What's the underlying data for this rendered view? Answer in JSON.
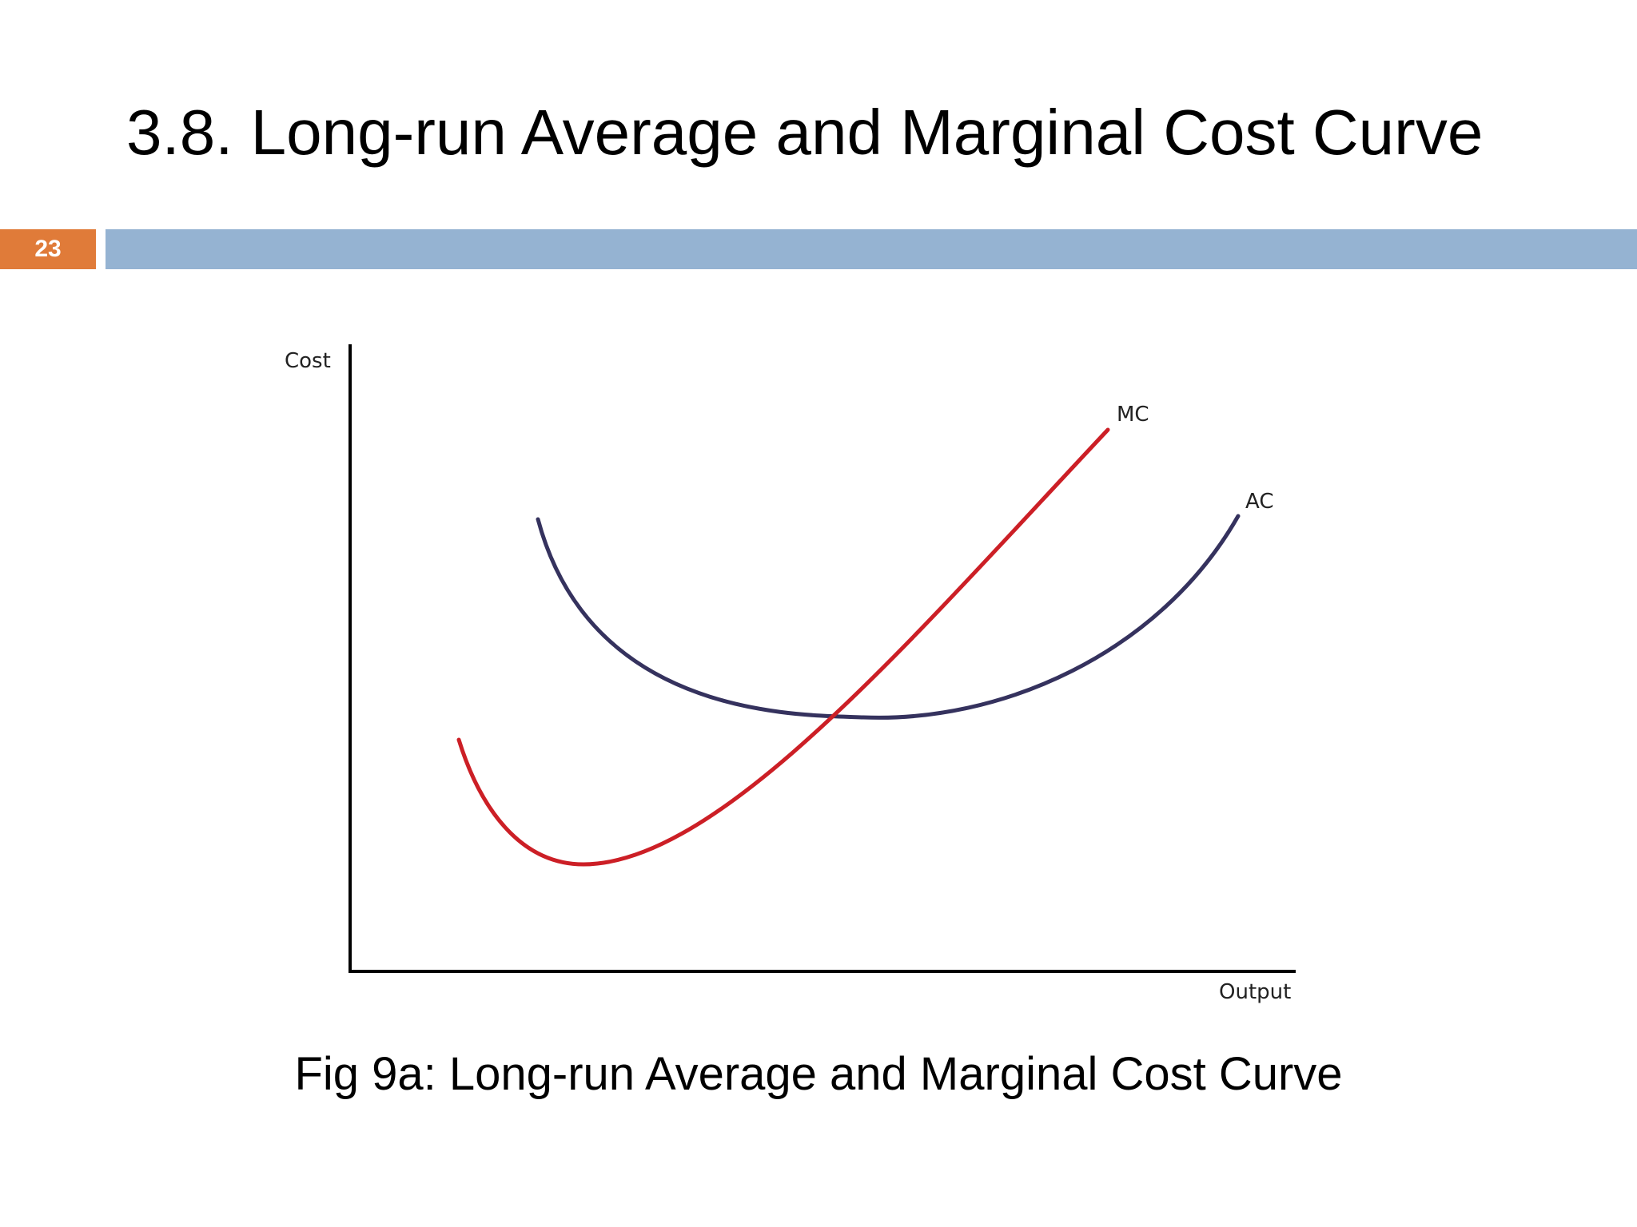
{
  "slide": {
    "title": "3.8. Long-run Average and Marginal Cost Curve",
    "number": "23",
    "caption": "Fig 9a: Long-run Average and Marginal Cost Curve"
  },
  "colors": {
    "number_box": "#e07b39",
    "header_bar": "#95b3d2",
    "mc_curve": "#cc1f26",
    "ac_curve": "#35325e",
    "axis": "#000000"
  },
  "chart_data": {
    "type": "line",
    "xlabel": "Output",
    "ylabel": "Cost",
    "grid": false,
    "ticks": false,
    "series": [
      {
        "name": "MC",
        "color": "#cc1f26",
        "shape": "U-shaped, rising steeply, cuts AC at its minimum"
      },
      {
        "name": "AC",
        "color": "#35325e",
        "shape": "U-shaped, minimum where MC crosses"
      }
    ]
  }
}
